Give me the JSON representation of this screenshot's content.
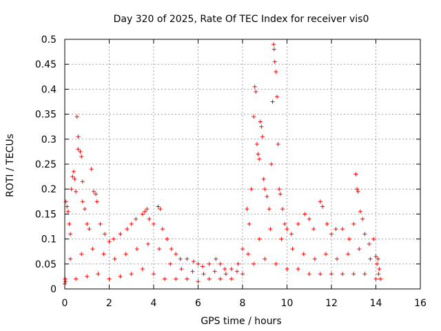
{
  "chart_data": {
    "type": "scatter",
    "title": "Day 320 of 2025, Rate Of TEC Index for receiver vis0",
    "xlabel": "GPS time / hours",
    "ylabel": "ROTI / TECUs",
    "xlim": [
      0,
      16
    ],
    "ylim": [
      0,
      0.5
    ],
    "grid": true,
    "marker": "+",
    "color": "#ff0000",
    "xticks": [
      0,
      2,
      4,
      6,
      8,
      10,
      12,
      14,
      16
    ],
    "xtick_labels": [
      "0",
      "2",
      "4",
      "6",
      "8",
      "10",
      "12",
      "14",
      "16"
    ],
    "yticks": [
      0,
      0.05,
      0.1,
      0.15,
      0.2,
      0.25,
      0.3,
      0.35,
      0.4,
      0.45,
      0.5
    ],
    "ytick_labels": [
      "0",
      "0.05",
      "0.1",
      "0.15",
      "0.2",
      "0.25",
      "0.3",
      "0.35",
      "0.4",
      "0.45",
      "0.5"
    ],
    "series": [
      {
        "name": "ROTI",
        "points": [
          [
            0.05,
            0.175
          ],
          [
            0.1,
            0.165
          ],
          [
            0.15,
            0.155
          ],
          [
            0.2,
            0.13
          ],
          [
            0.25,
            0.11
          ],
          [
            0.3,
            0.2
          ],
          [
            0.35,
            0.225
          ],
          [
            0.4,
            0.235
          ],
          [
            0.45,
            0.22
          ],
          [
            0.5,
            0.195
          ],
          [
            0.55,
            0.345
          ],
          [
            0.6,
            0.305
          ],
          [
            0.6,
            0.28
          ],
          [
            0.7,
            0.275
          ],
          [
            0.75,
            0.265
          ],
          [
            0.8,
            0.215
          ],
          [
            0.8,
            0.175
          ],
          [
            0.9,
            0.16
          ],
          [
            1.0,
            0.13
          ],
          [
            1.1,
            0.12
          ],
          [
            1.2,
            0.24
          ],
          [
            1.3,
            0.195
          ],
          [
            1.4,
            0.19
          ],
          [
            1.45,
            0.175
          ],
          [
            1.6,
            0.13
          ],
          [
            1.8,
            0.11
          ],
          [
            2.0,
            0.095
          ],
          [
            2.2,
            0.1
          ],
          [
            2.5,
            0.11
          ],
          [
            2.8,
            0.12
          ],
          [
            3.0,
            0.13
          ],
          [
            3.2,
            0.14
          ],
          [
            3.5,
            0.15
          ],
          [
            3.6,
            0.155
          ],
          [
            3.7,
            0.16
          ],
          [
            3.8,
            0.14
          ],
          [
            4.0,
            0.13
          ],
          [
            4.2,
            0.165
          ],
          [
            4.3,
            0.16
          ],
          [
            4.4,
            0.12
          ],
          [
            4.6,
            0.1
          ],
          [
            4.8,
            0.08
          ],
          [
            5.0,
            0.07
          ],
          [
            5.2,
            0.06
          ],
          [
            5.5,
            0.06
          ],
          [
            5.8,
            0.055
          ],
          [
            6.0,
            0.05
          ],
          [
            6.2,
            0.045
          ],
          [
            6.5,
            0.05
          ],
          [
            6.8,
            0.06
          ],
          [
            7.0,
            0.05
          ],
          [
            7.2,
            0.04
          ],
          [
            7.5,
            0.04
          ],
          [
            7.8,
            0.05
          ],
          [
            8.0,
            0.08
          ],
          [
            8.2,
            0.16
          ],
          [
            8.3,
            0.13
          ],
          [
            8.4,
            0.2
          ],
          [
            8.5,
            0.345
          ],
          [
            8.55,
            0.405
          ],
          [
            8.6,
            0.395
          ],
          [
            8.65,
            0.29
          ],
          [
            8.7,
            0.27
          ],
          [
            8.75,
            0.26
          ],
          [
            8.8,
            0.335
          ],
          [
            8.85,
            0.325
          ],
          [
            8.9,
            0.305
          ],
          [
            8.95,
            0.22
          ],
          [
            9.0,
            0.2
          ],
          [
            9.1,
            0.185
          ],
          [
            9.2,
            0.16
          ],
          [
            9.3,
            0.25
          ],
          [
            9.35,
            0.375
          ],
          [
            9.4,
            0.49
          ],
          [
            9.42,
            0.48
          ],
          [
            9.45,
            0.455
          ],
          [
            9.5,
            0.435
          ],
          [
            9.55,
            0.385
          ],
          [
            9.6,
            0.29
          ],
          [
            9.65,
            0.2
          ],
          [
            9.7,
            0.19
          ],
          [
            9.8,
            0.16
          ],
          [
            9.9,
            0.13
          ],
          [
            10.0,
            0.12
          ],
          [
            10.2,
            0.11
          ],
          [
            10.5,
            0.13
          ],
          [
            10.8,
            0.15
          ],
          [
            11.0,
            0.14
          ],
          [
            11.2,
            0.12
          ],
          [
            11.5,
            0.175
          ],
          [
            11.6,
            0.165
          ],
          [
            11.8,
            0.13
          ],
          [
            12.0,
            0.11
          ],
          [
            12.2,
            0.12
          ],
          [
            12.5,
            0.12
          ],
          [
            12.8,
            0.1
          ],
          [
            13.0,
            0.13
          ],
          [
            13.1,
            0.23
          ],
          [
            13.15,
            0.2
          ],
          [
            13.2,
            0.195
          ],
          [
            13.3,
            0.155
          ],
          [
            13.4,
            0.14
          ],
          [
            13.5,
            0.11
          ],
          [
            13.7,
            0.09
          ],
          [
            13.9,
            0.1
          ],
          [
            14.0,
            0.065
          ],
          [
            14.1,
            0.06
          ],
          [
            14.15,
            0.04
          ],
          [
            14.2,
            0.02
          ],
          [
            0.0,
            0.01
          ],
          [
            0.02,
            0.02
          ],
          [
            0.03,
            0.015
          ],
          [
            0.5,
            0.02
          ],
          [
            1.0,
            0.025
          ],
          [
            1.5,
            0.03
          ],
          [
            2.0,
            0.02
          ],
          [
            2.5,
            0.025
          ],
          [
            3.0,
            0.03
          ],
          [
            3.5,
            0.04
          ],
          [
            4.0,
            0.03
          ],
          [
            4.5,
            0.02
          ],
          [
            5.0,
            0.02
          ],
          [
            5.5,
            0.02
          ],
          [
            6.0,
            0.015
          ],
          [
            6.5,
            0.02
          ],
          [
            7.0,
            0.02
          ],
          [
            7.5,
            0.02
          ],
          [
            8.0,
            0.03
          ],
          [
            8.5,
            0.05
          ],
          [
            9.0,
            0.06
          ],
          [
            9.5,
            0.05
          ],
          [
            10.0,
            0.04
          ],
          [
            10.5,
            0.04
          ],
          [
            11.0,
            0.03
          ],
          [
            11.5,
            0.03
          ],
          [
            12.0,
            0.03
          ],
          [
            12.5,
            0.03
          ],
          [
            13.0,
            0.03
          ],
          [
            13.5,
            0.03
          ],
          [
            14.0,
            0.02
          ],
          [
            0.25,
            0.06
          ],
          [
            0.75,
            0.07
          ],
          [
            1.25,
            0.08
          ],
          [
            1.75,
            0.07
          ],
          [
            2.25,
            0.06
          ],
          [
            2.75,
            0.07
          ],
          [
            3.25,
            0.08
          ],
          [
            3.75,
            0.09
          ],
          [
            4.25,
            0.08
          ],
          [
            4.75,
            0.05
          ],
          [
            5.25,
            0.04
          ],
          [
            5.75,
            0.035
          ],
          [
            6.25,
            0.03
          ],
          [
            6.75,
            0.035
          ],
          [
            7.25,
            0.03
          ],
          [
            7.75,
            0.035
          ],
          [
            8.25,
            0.07
          ],
          [
            8.75,
            0.1
          ],
          [
            9.25,
            0.12
          ],
          [
            9.75,
            0.1
          ],
          [
            10.25,
            0.08
          ],
          [
            10.75,
            0.07
          ],
          [
            11.25,
            0.06
          ],
          [
            11.75,
            0.07
          ],
          [
            12.25,
            0.06
          ],
          [
            12.75,
            0.07
          ],
          [
            13.25,
            0.08
          ],
          [
            13.75,
            0.06
          ],
          [
            14.05,
            0.05
          ],
          [
            14.12,
            0.03
          ]
        ]
      }
    ]
  }
}
